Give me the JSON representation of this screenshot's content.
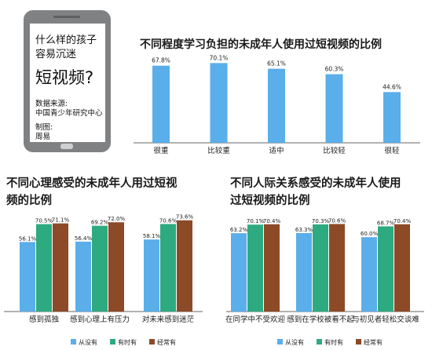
{
  "infographic": {
    "question_line1": "什么样的孩子",
    "question_line2": "容易沉迷",
    "question_big": "短视频?",
    "source_label": "数据来源:",
    "source_value": "中国青少年研究中心",
    "maker_label": "制图:",
    "maker_value": "周易"
  },
  "colors": {
    "blue": "#5aaee9",
    "green": "#2daa80",
    "brown": "#8c4a27",
    "axis": "#666666",
    "phone_body": "#7f8183"
  },
  "chart_data": [
    {
      "type": "bar",
      "title": "不同程度学习负担的未成年人使用过短视频的比例",
      "categories": [
        "很重",
        "比较重",
        "适中",
        "比较轻",
        "很轻"
      ],
      "value_labels": [
        "67.8%",
        "70.1%",
        "65.1%",
        "60.3%",
        "44.6%"
      ],
      "values": [
        67.8,
        70.1,
        65.1,
        60.3,
        44.6
      ],
      "ylim": [
        0,
        75
      ],
      "color": "#5aaee9",
      "legend": "none"
    },
    {
      "type": "bar",
      "title_lines": [
        "不同心理感受的未成年人用过短视",
        "频的比例"
      ],
      "categories": [
        "感到孤独",
        "感到心理上有压力",
        "对未来感到迷茫"
      ],
      "ylim": [
        0,
        75
      ],
      "legend": "bottom",
      "series": [
        {
          "name": "从没有",
          "color": "#5aaee9",
          "values": [
            56.1,
            56.4,
            58.1
          ],
          "value_labels": [
            "56.1%",
            "56.4%",
            "58.1%"
          ]
        },
        {
          "name": "有时有",
          "color": "#2daa80",
          "values": [
            70.5,
            69.2,
            70.6
          ],
          "value_labels": [
            "70.5%",
            "69.2%",
            "70.6%"
          ]
        },
        {
          "name": "经常有",
          "color": "#8c4a27",
          "values": [
            71.1,
            72.0,
            73.6
          ],
          "value_labels": [
            "71.1%",
            "72.0%",
            "73.6%"
          ]
        }
      ]
    },
    {
      "type": "bar",
      "title_lines": [
        "不同人际关系感受的未成年人使用",
        "过短视频的比例"
      ],
      "categories": [
        "在同学中不受欢迎",
        "感到在学校被看不起",
        "与初见者轻松交谈难"
      ],
      "ylim": [
        0,
        75
      ],
      "legend": "bottom",
      "series": [
        {
          "name": "从没有",
          "color": "#5aaee9",
          "values": [
            63.2,
            63.3,
            60.0
          ],
          "value_labels": [
            "63.2%",
            "63.3%",
            "60.0%"
          ]
        },
        {
          "name": "有时有",
          "color": "#2daa80",
          "values": [
            70.1,
            70.3,
            68.7
          ],
          "value_labels": [
            "70.1%",
            "70.3%",
            "68.7%"
          ]
        },
        {
          "name": "经常有",
          "color": "#8c4a27",
          "values": [
            70.4,
            70.6,
            70.4
          ],
          "value_labels": [
            "70.4%",
            "70.6%",
            "70.4%"
          ]
        }
      ]
    }
  ]
}
